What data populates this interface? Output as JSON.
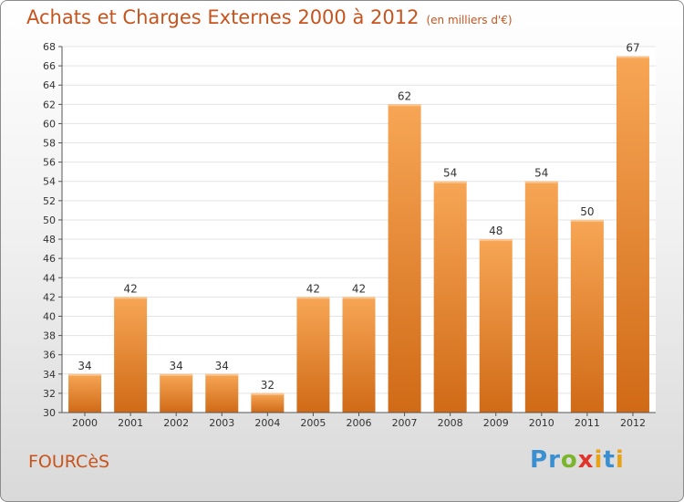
{
  "title": "Achats et Charges Externes 2000 à 2012",
  "subtitle": "(en milliers d'€)",
  "commune": "FOURCèS",
  "logo": {
    "letters": [
      "P",
      "r",
      "o",
      "x",
      "i",
      "t",
      "i"
    ],
    "colors": [
      "#3a8fd1",
      "#3a8fd1",
      "#7ab52b",
      "#e0342b",
      "#e8a21a",
      "#3a8fd1",
      "#e8a21a"
    ]
  },
  "colors": {
    "bar_top": "#f7a655",
    "bar_bottom": "#d06a17",
    "title": "#c7541d",
    "grid": "#e3e3e3"
  },
  "chart_data": {
    "type": "bar",
    "title": "Achats et Charges Externes 2000 à 2012",
    "subtitle": "(en milliers d'€)",
    "categories": [
      "2000",
      "2001",
      "2002",
      "2003",
      "2004",
      "2005",
      "2006",
      "2007",
      "2008",
      "2009",
      "2010",
      "2011",
      "2012"
    ],
    "values": [
      34,
      42,
      34,
      34,
      32,
      42,
      42,
      62,
      54,
      48,
      54,
      50,
      67
    ],
    "ylim": [
      30,
      68
    ],
    "ytick_step": 2,
    "grid": true
  }
}
